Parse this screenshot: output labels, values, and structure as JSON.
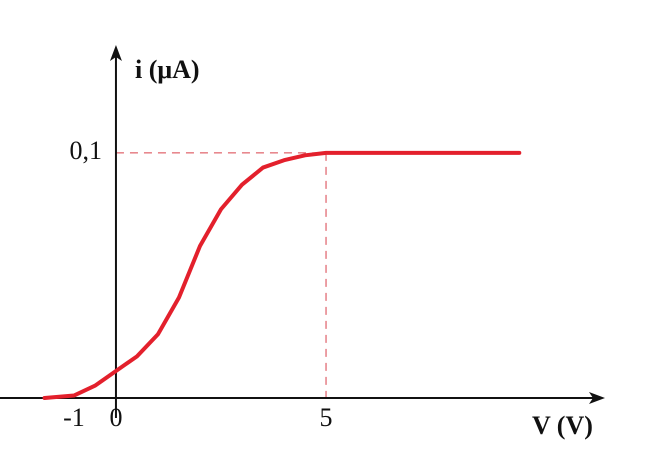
{
  "chart_data": {
    "type": "line",
    "x_label": "V (V)",
    "y_label": "i (μA)",
    "x": [
      -1.7,
      -1,
      -0.5,
      0,
      0.5,
      1,
      1.5,
      2,
      2.5,
      3,
      3.5,
      4,
      4.5,
      5,
      9.6
    ],
    "values": [
      0,
      0.001,
      0.005,
      0.011,
      0.017,
      0.026,
      0.041,
      0.062,
      0.077,
      0.087,
      0.094,
      0.097,
      0.099,
      0.1,
      0.1
    ],
    "color": "#e3202c",
    "xlim": [
      -2.76,
      11.64
    ],
    "ylim": [
      0,
      0.144
    ],
    "xticks": [
      -1,
      0,
      5
    ],
    "yticks": [
      {
        "value": 0.1,
        "label": "0,1"
      }
    ]
  }
}
